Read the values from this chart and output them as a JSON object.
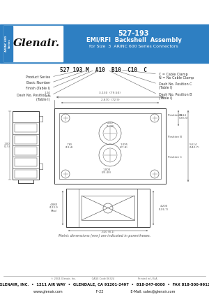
{
  "title_part": "527-193",
  "title_main": "EMI/RFI  Backshell  Assembly",
  "title_sub": "for Size  3  ARINC 600 Series Connectors",
  "header_bg": "#2e7fc2",
  "header_text_color": "#ffffff",
  "page_bg": "#ffffff",
  "drawing_line_color": "#444444",
  "dim_color": "#555555",
  "part_number_label": "527 193 M  A10  B10  C10  C",
  "footer_line1": "© 2004 Glenair, Inc.                    CAGE Code 06324                              Printed in U.S.A.",
  "footer_line2": "GLENAIR, INC.  •  1211 AIR WAY  •  GLENDALE, CA 91201-2497  •  818-247-6000  •  FAX 818-500-9912",
  "footer_line3": "www.glenair.com                                F-22                          E-Mail: sales@glenair.com",
  "metric_note": "Metric dimensions (mm) are indicated in parentheses."
}
